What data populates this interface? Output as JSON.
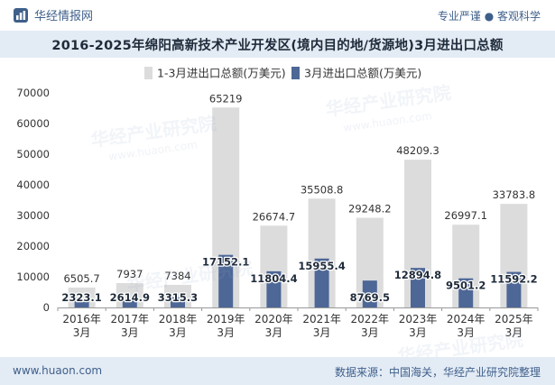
{
  "header": {
    "brand": "华经情报网",
    "tagline": "专业严谨 ● 客观科学"
  },
  "footer": {
    "url": "www.huaon.com",
    "source": "数据来源：中国海关，华经产业研究院整理"
  },
  "watermark": {
    "text": "华经产业研究院",
    "url": "www.huaon.com"
  },
  "colors": {
    "series1": "#dcdcdc",
    "series2": "#4d6796",
    "brand": "#3e5f8a",
    "title_bg": "#e3ebf5"
  },
  "chart_data": {
    "type": "bar",
    "title": "2016-2025年绵阳高新技术产业开发区(境内目的地/货源地)3月进出口总额",
    "categories": [
      "2016年\n3月",
      "2017年\n3月",
      "2018年\n3月",
      "2019年\n3月",
      "2020年\n3月",
      "2021年\n3月",
      "2022年\n3月",
      "2023年\n3月",
      "2024年\n3月",
      "2025年\n3月"
    ],
    "series": [
      {
        "name": "1-3月进出口总额(万美元)",
        "values": [
          6505.7,
          7937,
          7384,
          65219,
          26674.7,
          35508.8,
          29248.2,
          48209.3,
          26997.1,
          33783.8
        ]
      },
      {
        "name": "3月进出口总额(万美元)",
        "values": [
          2323.1,
          2614.9,
          3315.3,
          17152.1,
          11804.4,
          15955.4,
          8769.5,
          12894.8,
          9501.2,
          11592.2
        ]
      }
    ],
    "labels": [
      [
        "6505.7",
        "7937",
        "7384",
        "65219",
        "26674.7",
        "35508.8",
        "29248.2",
        "48209.3",
        "26997.1",
        "33783.8"
      ],
      [
        "2323.1",
        "2614.9",
        "3315.3",
        "17152.1",
        "11804.4",
        "15955.4",
        "8769.5",
        "12894.8",
        "9501.2",
        "11592.2"
      ]
    ],
    "ylim": [
      0,
      70000
    ],
    "yticks": [
      0,
      10000,
      20000,
      30000,
      40000,
      50000,
      60000,
      70000
    ],
    "legend_position": "top",
    "grid": false
  }
}
